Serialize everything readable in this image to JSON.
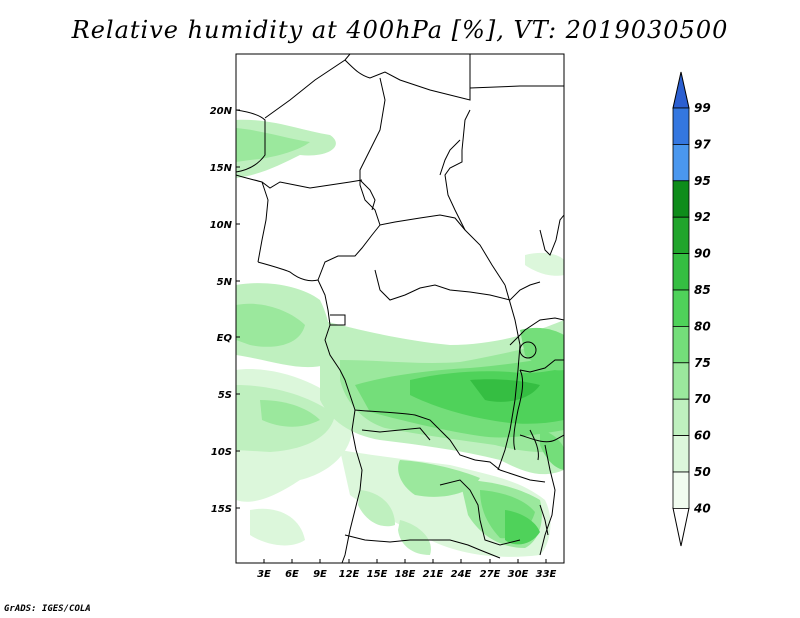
{
  "title": "Relative humidity at 400hPa [%], VT: 2019030500",
  "credit": "GrADS: IGES/COLA",
  "map": {
    "region": "Central Africa",
    "lat_labels": [
      "20N",
      "15N",
      "10N",
      "5N",
      "EQ",
      "5S",
      "10S",
      "15S"
    ],
    "lon_labels": [
      "3E",
      "6E",
      "9E",
      "12E",
      "15E",
      "18E",
      "21E",
      "24E",
      "27E",
      "30E",
      "33E"
    ]
  },
  "colorbar": {
    "labels": [
      "99",
      "97",
      "95",
      "92",
      "90",
      "85",
      "80",
      "75",
      "70",
      "60",
      "50",
      "40"
    ],
    "colors": [
      "#2b5fd1",
      "#3477e0",
      "#4a97ee",
      "#0e8c1a",
      "#21a52c",
      "#35be42",
      "#4fd25a",
      "#74de7a",
      "#9be89d",
      "#bff0bf",
      "#dcf7db",
      "#f1fcf0"
    ]
  }
}
